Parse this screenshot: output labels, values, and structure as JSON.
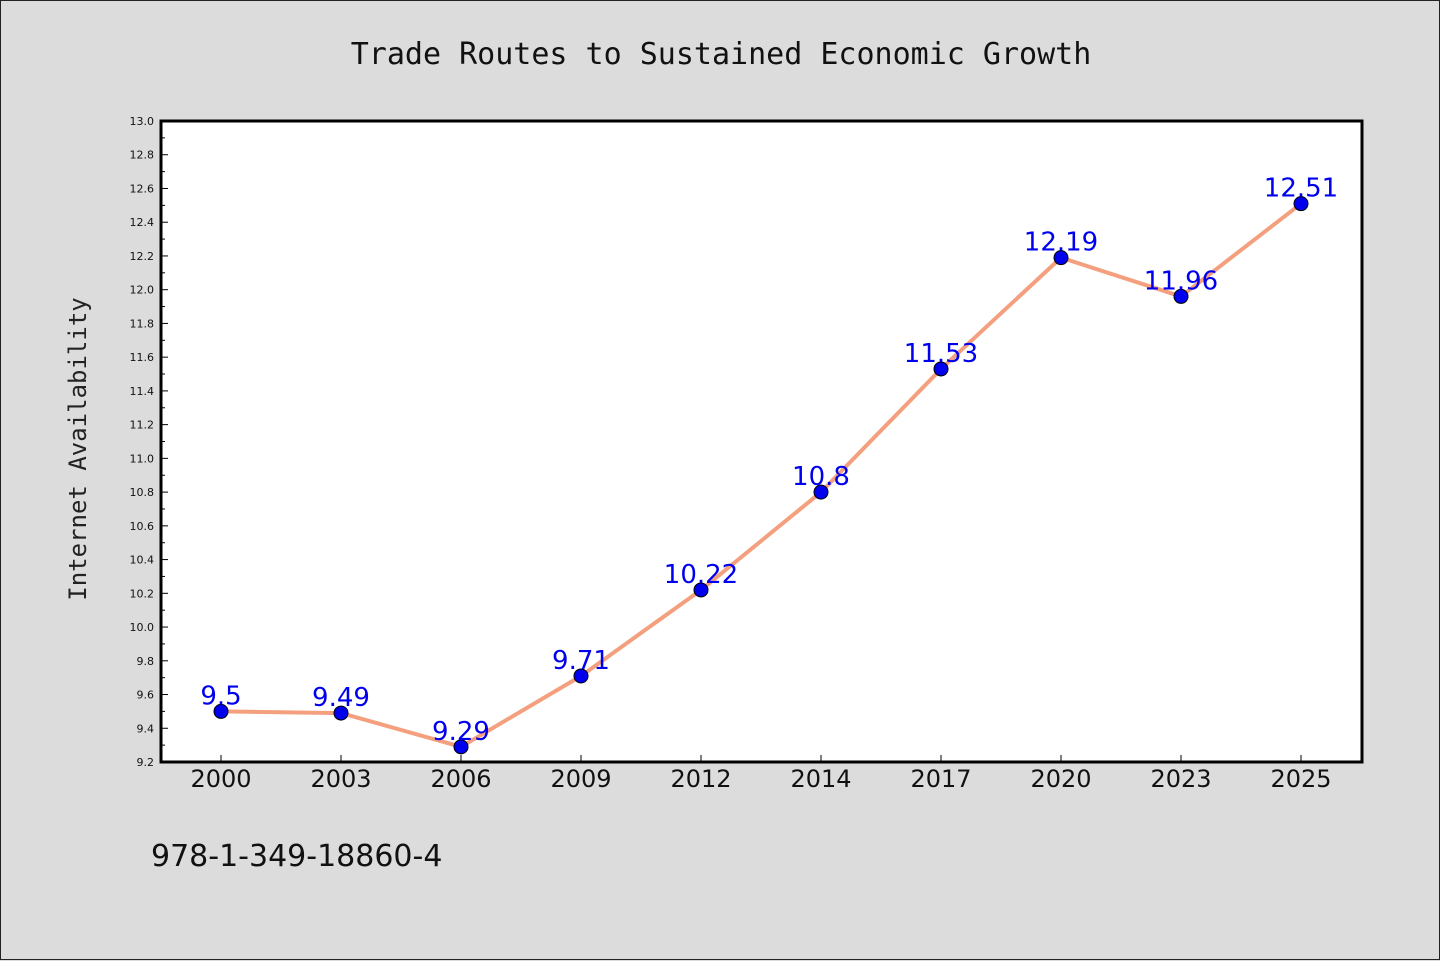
{
  "chart_data": {
    "type": "line",
    "title": "Trade Routes to Sustained Economic Growth",
    "xlabel": "",
    "ylabel": "Internet Availability",
    "categories": [
      "2000",
      "2003",
      "2006",
      "2009",
      "2012",
      "2014",
      "2017",
      "2020",
      "2023",
      "2025"
    ],
    "series": [
      {
        "values": [
          9.5,
          9.49,
          9.29,
          9.71,
          10.22,
          10.8,
          11.53,
          12.19,
          11.96,
          12.51
        ],
        "data_labels": [
          "9.5",
          "9.49",
          "9.29",
          "9.71",
          "10.22",
          "10.8",
          "11.53",
          "12.19",
          "11.96",
          "12.51"
        ]
      }
    ],
    "ylim": [
      9.2,
      13.0
    ],
    "yticks": [
      "9.2",
      "9.4",
      "9.6",
      "9.8",
      "10.0",
      "10.2",
      "10.4",
      "10.6",
      "10.8",
      "11.0",
      "11.2",
      "11.4",
      "11.6",
      "11.8",
      "12.0",
      "12.2",
      "12.4",
      "12.6",
      "12.8",
      "13.0"
    ],
    "grid": false,
    "legend": "none",
    "colors": {
      "line": "#f4a07e",
      "marker": "#0000ee",
      "data_label": "#0000ee",
      "plot_bg": "#ffffff",
      "figure_bg": "#dcdcdc"
    }
  },
  "footer": {
    "isbn": "978-1-349-18860-4"
  }
}
